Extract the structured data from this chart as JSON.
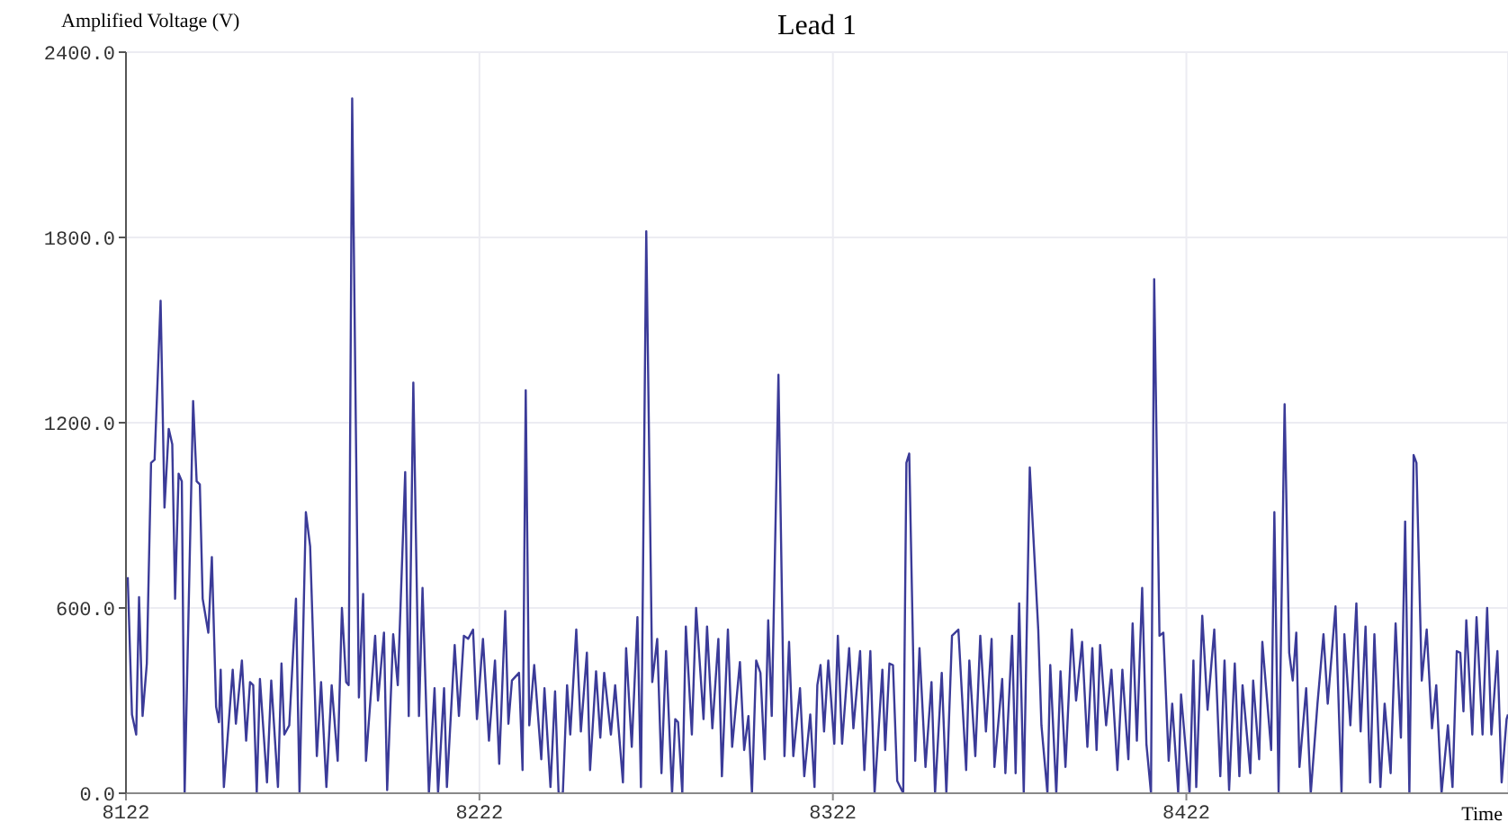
{
  "chart_data": {
    "type": "line",
    "title": "Lead 1",
    "xlabel": "Time",
    "ylabel": "Amplified Voltage (V)",
    "xlim": [
      8122,
      8513
    ],
    "xticks": [
      8122,
      8222,
      8322,
      8422
    ],
    "ylim": [
      0,
      2400
    ],
    "yticks": [
      {
        "value": 0,
        "label": "0.0"
      },
      {
        "value": 600,
        "label": "600.0"
      },
      {
        "value": 1200,
        "label": "1200.0"
      },
      {
        "value": 1800,
        "label": "1800.0"
      },
      {
        "value": 2400,
        "label": "2400.0"
      }
    ],
    "grid": true,
    "marker": "none",
    "line_style": "solid",
    "x": [
      8122.5,
      8123.7,
      8124.9,
      8125.7,
      8126.7,
      8127.9,
      8129.1,
      8130.1,
      8131.8,
      8132.9,
      8134.1,
      8135.1,
      8135.9,
      8136.9,
      8137.8,
      8138.6,
      8141.0,
      8142.0,
      8142.9,
      8143.7,
      8145.3,
      8146.3,
      8147.5,
      8148.3,
      8148.8,
      8149.7,
      8152.2,
      8153.1,
      8154.8,
      8156.0,
      8157.1,
      8158.0,
      8159.0,
      8159.9,
      8161.9,
      8163.1,
      8165.0,
      8166.0,
      8166.8,
      8168.2,
      8170.1,
      8171.1,
      8172.9,
      8174.1,
      8176.0,
      8177.2,
      8178.7,
      8180.2,
      8181.9,
      8183.1,
      8184.3,
      8185.0,
      8186.0,
      8187.9,
      8189.1,
      8189.9,
      8192.5,
      8193.3,
      8195.0,
      8195.9,
      8197.6,
      8198.9,
      8201.0,
      8202.0,
      8203.3,
      8204.9,
      8205.9,
      8207.7,
      8209.3,
      8210.3,
      8212.0,
      8212.8,
      8215.0,
      8216.2,
      8217.6,
      8218.8,
      8220.2,
      8221.3,
      8223.0,
      8224.7,
      8226.4,
      8227.6,
      8229.3,
      8230.2,
      8231.2,
      8233.2,
      8234.2,
      8235.1,
      8236.1,
      8237.5,
      8239.5,
      8240.4,
      8242.1,
      8243.4,
      8244.4,
      8245.6,
      8246.8,
      8247.7,
      8249.4,
      8250.7,
      8252.4,
      8253.3,
      8255.0,
      8256.2,
      8257.3,
      8259.2,
      8260.4,
      8262.6,
      8263.5,
      8265.1,
      8266.7,
      8267.7,
      8269.2,
      8270.9,
      8272.3,
      8273.5,
      8274.8,
      8276.5,
      8277.4,
      8278.2,
      8279.4,
      8280.4,
      8282.1,
      8283.3,
      8285.4,
      8286.4,
      8287.9,
      8289.6,
      8290.6,
      8292.3,
      8293.5,
      8295.7,
      8296.9,
      8298.1,
      8299.1,
      8300.3,
      8301.5,
      8302.7,
      8303.7,
      8304.7,
      8306.6,
      8308.3,
      8309.6,
      8310.8,
      8312.7,
      8313.9,
      8315.6,
      8316.8,
      8317.6,
      8318.5,
      8319.5,
      8320.7,
      8322.4,
      8323.4,
      8324.6,
      8326.6,
      8327.8,
      8329.7,
      8330.9,
      8332.6,
      8333.8,
      8336.0,
      8336.8,
      8338.0,
      8339.0,
      8340.2,
      8341.9,
      8342.8,
      8343.6,
      8345.3,
      8346.5,
      8348.2,
      8349.9,
      8350.9,
      8352.8,
      8354.1,
      8355.7,
      8357.5,
      8359.7,
      8360.6,
      8362.3,
      8363.7,
      8365.3,
      8366.9,
      8367.7,
      8369.9,
      8370.8,
      8372.7,
      8373.7,
      8374.7,
      8376.0,
      8377.7,
      8380.1,
      8381.0,
      8382.7,
      8383.5,
      8385.2,
      8386.4,
      8387.8,
      8389.6,
      8390.8,
      8392.5,
      8394.0,
      8395.4,
      8396.6,
      8397.6,
      8399.3,
      8400.8,
      8402.5,
      8403.9,
      8405.6,
      8406.8,
      8408.0,
      8409.5,
      8410.7,
      8412.0,
      8412.9,
      8414.4,
      8415.5,
      8417.0,
      8418.0,
      8419.7,
      8420.5,
      8422.9,
      8424.0,
      8424.8,
      8426.5,
      8428.0,
      8429.9,
      8431.6,
      8432.8,
      8434.1,
      8435.7,
      8437.0,
      8437.9,
      8440.1,
      8440.9,
      8442.6,
      8443.5,
      8446.0,
      8446.9,
      8448.1,
      8449.8,
      8451.1,
      8452.1,
      8453.1,
      8454.0,
      8455.9,
      8457.2,
      8459.1,
      8460.8,
      8462.0,
      8464.2,
      8465.9,
      8466.7,
      8468.4,
      8470.1,
      8471.3,
      8472.7,
      8474.0,
      8475.2,
      8476.9,
      8478.1,
      8479.8,
      8481.2,
      8482.7,
      8483.9,
      8485.1,
      8486.3,
      8487.1,
      8488.6,
      8490.0,
      8491.5,
      8492.7,
      8494.2,
      8496.0,
      8497.3,
      8498.5,
      8499.5,
      8500.4,
      8501.2,
      8502.9,
      8504.1,
      8505.8,
      8507.1,
      8508.3,
      8510.0,
      8511.2,
      8512.6,
      8513
    ],
    "series": [
      {
        "color": "#3b3b98",
        "values": [
          700,
          255,
          190,
          635,
          250,
          420,
          1070,
          1080,
          1595,
          925,
          1180,
          1130,
          630,
          1035,
          1010,
          0,
          1270,
          1010,
          1000,
          630,
          520,
          765,
          280,
          230,
          400,
          20,
          400,
          225,
          430,
          170,
          360,
          350,
          0,
          370,
          35,
          365,
          20,
          420,
          190,
          220,
          630,
          0,
          910,
          800,
          120,
          360,
          20,
          350,
          105,
          600,
          360,
          350,
          2250,
          310,
          645,
          105,
          510,
          300,
          520,
          10,
          515,
          350,
          1040,
          250,
          1330,
          250,
          665,
          0,
          340,
          0,
          340,
          20,
          480,
          250,
          510,
          500,
          530,
          240,
          500,
          170,
          430,
          95,
          590,
          225,
          365,
          390,
          75,
          1305,
          220,
          415,
          110,
          340,
          20,
          330,
          0,
          0,
          350,
          190,
          530,
          200,
          455,
          75,
          395,
          180,
          390,
          190,
          350,
          35,
          470,
          150,
          570,
          20,
          1820,
          360,
          500,
          65,
          460,
          0,
          240,
          230,
          0,
          540,
          190,
          600,
          240,
          540,
          210,
          500,
          55,
          530,
          150,
          425,
          140,
          250,
          0,
          430,
          390,
          110,
          560,
          250,
          1355,
          120,
          490,
          120,
          340,
          55,
          255,
          20,
          350,
          415,
          200,
          430,
          160,
          510,
          160,
          470,
          210,
          460,
          75,
          460,
          0,
          400,
          140,
          420,
          415,
          40,
          0,
          1070,
          1100,
          105,
          470,
          85,
          360,
          0,
          390,
          0,
          510,
          530,
          75,
          430,
          120,
          510,
          200,
          500,
          85,
          370,
          65,
          510,
          65,
          615,
          0,
          1055,
          530,
          220,
          0,
          415,
          0,
          395,
          85,
          530,
          300,
          490,
          150,
          470,
          140,
          480,
          220,
          400,
          75,
          400,
          110,
          550,
          170,
          665,
          160,
          0,
          1665,
          510,
          520,
          105,
          290,
          0,
          320,
          0,
          430,
          20,
          575,
          270,
          530,
          55,
          430,
          10,
          420,
          55,
          350,
          65,
          365,
          110,
          490,
          140,
          910,
          0,
          1260,
          455,
          365,
          520,
          85,
          340,
          0,
          290,
          515,
          290,
          605,
          0,
          515,
          220,
          615,
          200,
          540,
          35,
          515,
          20,
          290,
          65,
          550,
          180,
          880,
          0,
          1095,
          1070,
          365,
          530,
          210,
          350,
          0,
          220,
          20,
          460,
          455,
          265,
          560,
          190,
          570,
          190,
          600,
          190,
          460,
          35,
          240,
          255
        ]
      }
    ]
  }
}
